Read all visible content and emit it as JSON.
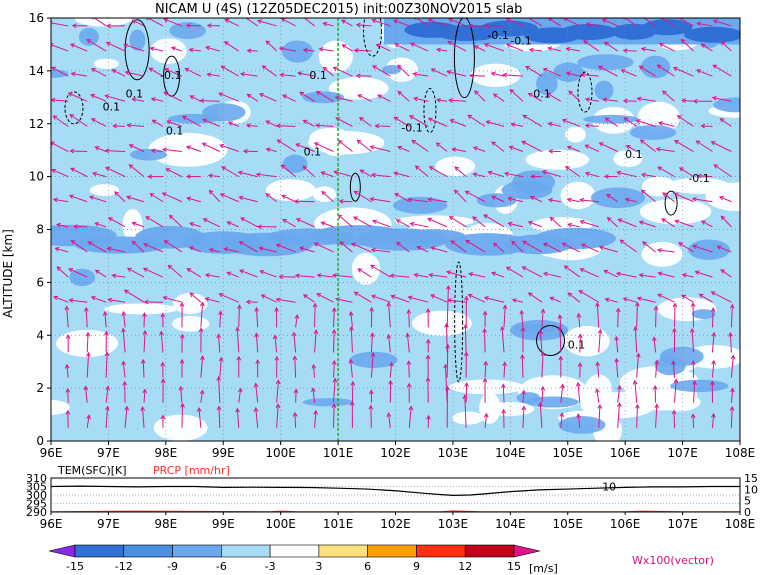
{
  "title": "NICAM U (4S) (12Z05DEC2015) init:00Z30NOV2015 slab",
  "colors": {
    "dark_blue": "#2f6fd6",
    "mid_blue": "#6aa9ee",
    "light_blue": "#a7dcf6",
    "white": "#ffffff",
    "vector": "#e0148a",
    "green_line": "#22b022",
    "precip": "#ff3030"
  },
  "chart_data": [
    {
      "type": "heatmap",
      "ylabel": "ALTITUDE [km]",
      "xlim": [
        96,
        108
      ],
      "ylim": [
        0,
        16
      ],
      "x_ticks": [
        "96E",
        "97E",
        "98E",
        "99E",
        "100E",
        "101E",
        "102E",
        "103E",
        "104E",
        "105E",
        "106E",
        "107E",
        "108E"
      ],
      "y_ticks": [
        "0",
        "2",
        "4",
        "6",
        "8",
        "10",
        "12",
        "14",
        "16"
      ],
      "grid": true,
      "marker_line_x": 101,
      "contour_labels": [
        {
          "text": "-0.1",
          "x": 97.9,
          "y": 13.7
        },
        {
          "text": "0.1",
          "x": 96.9,
          "y": 12.5
        },
        {
          "text": "0.1",
          "x": 97.3,
          "y": 13.0
        },
        {
          "text": "0.1",
          "x": 98.0,
          "y": 11.6
        },
        {
          "text": "0.1",
          "x": 100.5,
          "y": 13.7
        },
        {
          "text": "0.1",
          "x": 100.4,
          "y": 10.8
        },
        {
          "text": "-0.1",
          "x": 102.1,
          "y": 11.7
        },
        {
          "text": "-0.1",
          "x": 103.6,
          "y": 15.2
        },
        {
          "text": "-0.1",
          "x": 104.0,
          "y": 15.0
        },
        {
          "text": "0.1",
          "x": 104.4,
          "y": 13.0
        },
        {
          "text": "0.1",
          "x": 106.0,
          "y": 10.7
        },
        {
          "text": "-0.1",
          "x": 107.1,
          "y": 9.8
        },
        {
          "text": "0.1",
          "x": 105.0,
          "y": 3.5
        }
      ]
    },
    {
      "type": "line",
      "title_left": "TEM(SFC)[K]",
      "title_right": "PRCP [mm/hr]",
      "left_ticks": [
        "310",
        "305",
        "300",
        "295",
        "290"
      ],
      "right_ticks": [
        "15",
        "10",
        "5",
        "0"
      ],
      "left_ylim": [
        290,
        310
      ],
      "right_ylim": [
        0,
        15
      ],
      "x_ticks": [
        "96E",
        "97E",
        "98E",
        "99E",
        "100E",
        "101E",
        "102E",
        "103E",
        "104E",
        "105E",
        "106E",
        "107E",
        "108E"
      ],
      "curve_label": "10",
      "series": [
        {
          "x": [
            96,
            96.5,
            97,
            97.5,
            98,
            98.5,
            99,
            99.5,
            100,
            100.5,
            101,
            101.5,
            102,
            102.5,
            102.8,
            103,
            103.3,
            103.6,
            104,
            104.5,
            105,
            105.5,
            106,
            106.5,
            107,
            107.5,
            108
          ],
          "values": [
            305.0,
            305.2,
            305.0,
            304.8,
            305.0,
            305.0,
            304.5,
            304.6,
            304.5,
            304.4,
            304.0,
            303.5,
            302.5,
            301.0,
            300.2,
            299.8,
            300.0,
            300.8,
            302.0,
            303.0,
            303.5,
            304.0,
            304.5,
            304.8,
            304.8,
            305.0,
            305.0
          ]
        },
        {
          "x": [
            97.5,
            99.8,
            100.0,
            100.3,
            102.8,
            103.0,
            103.5,
            106.0,
            106.3,
            107.0
          ],
          "values": [
            0.3,
            0.0,
            0.3,
            0.0,
            0.0,
            0.4,
            0.0,
            0.0,
            0.3,
            0.0
          ]
        }
      ]
    },
    {
      "type": "bar",
      "units": "[m/s]",
      "vector_label": "Wx100(vector)",
      "tick_labels": [
        "-15",
        "-12",
        "-9",
        "-6",
        "-3",
        "3",
        "6",
        "9",
        "12",
        "15"
      ],
      "colors": [
        "#8a2be2",
        "#2f6fd6",
        "#4a90e2",
        "#6aa9ee",
        "#a7dcf6",
        "#ffffff",
        "#ffe07a",
        "#ffa000",
        "#ff3010",
        "#c0001a",
        "#e0148a"
      ]
    }
  ]
}
